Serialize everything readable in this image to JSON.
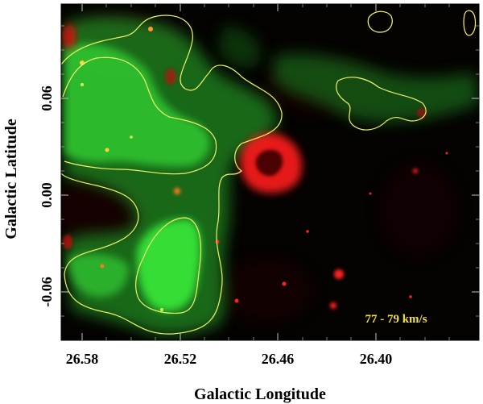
{
  "figure": {
    "velocity_label": "77 - 79 km/s",
    "xlabel": "Galactic Longitude",
    "ylabel": "Galactic Latitude",
    "x_ticks": [
      "26.58",
      "26.52",
      "26.46",
      "26.40"
    ],
    "y_ticks": [
      "0.06",
      "0.00",
      "-0.06"
    ],
    "colors": {
      "background": "#000000",
      "red_channel": "#ff1a1a",
      "green_channel": "#33e633",
      "contour": "#f2f26a",
      "velocity_label": "#f2e233"
    }
  }
}
